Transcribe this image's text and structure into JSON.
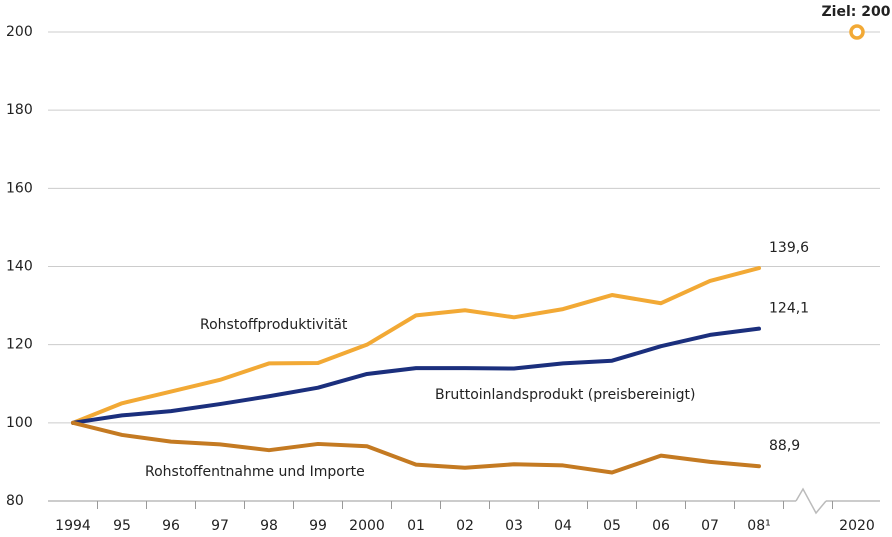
{
  "chart_data": {
    "type": "line",
    "categories": [
      "1994",
      "95",
      "96",
      "97",
      "98",
      "99",
      "2000",
      "01",
      "02",
      "03",
      "04",
      "05",
      "06",
      "07",
      "08¹",
      null,
      "2020"
    ],
    "series": [
      {
        "name": "Rohstoffproduktivität",
        "color": "#f2a935",
        "values": [
          100,
          105,
          108,
          111,
          115.2,
          115.3,
          120,
          127.5,
          128.8,
          127,
          129.1,
          132.7,
          130.6,
          136.3,
          139.6,
          null,
          null
        ],
        "value_labels": [
          null,
          null,
          null,
          null,
          null,
          null,
          null,
          null,
          null,
          null,
          null,
          null,
          null,
          null,
          "139,6",
          null,
          null
        ]
      },
      {
        "name": "Bruttoinlandsprodukt (preisbereinigt)",
        "color": "#1b2f7d",
        "values": [
          100,
          101.9,
          103,
          104.8,
          106.8,
          109,
          112.5,
          114,
          114,
          113.9,
          115.2,
          115.9,
          119.6,
          122.5,
          124.1,
          null,
          null
        ],
        "value_labels": [
          null,
          null,
          null,
          null,
          null,
          null,
          null,
          null,
          null,
          null,
          null,
          null,
          null,
          null,
          "124,1",
          null,
          null
        ]
      },
      {
        "name": "Rohstoffentnahme und Importe",
        "color": "#c47a22",
        "values": [
          100,
          96.9,
          95.2,
          94.5,
          93,
          94.6,
          94,
          89.3,
          88.5,
          89.4,
          89.1,
          87.3,
          91.6,
          90,
          88.9,
          null,
          null
        ],
        "value_labels": [
          null,
          null,
          null,
          null,
          null,
          null,
          null,
          null,
          null,
          null,
          null,
          null,
          null,
          null,
          "88,9",
          null,
          null
        ]
      }
    ],
    "annotations": [
      {
        "text": "Ziel: 200",
        "x": "2020",
        "y": 200,
        "color": "#f2a935"
      }
    ],
    "ylim": [
      80,
      205
    ],
    "yticks": [
      80,
      100,
      120,
      140,
      160,
      180,
      200
    ],
    "grid": true
  }
}
